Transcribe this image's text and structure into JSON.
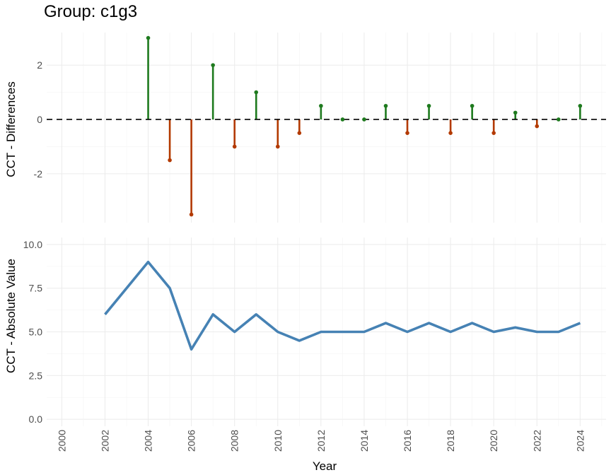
{
  "chart_data": {
    "type": "line",
    "title": "Group: c1g3",
    "xlabel": "Year",
    "x_ticks": [
      "2000",
      "2002",
      "2004",
      "2006",
      "2008",
      "2010",
      "2012",
      "2014",
      "2016",
      "2018",
      "2020",
      "2022",
      "2024"
    ],
    "xlim": [
      1999.3,
      2025.2
    ],
    "colors": {
      "positive": "#1e7a1e",
      "negative": "#b33a00",
      "line": "#4682b4",
      "zero_line": "#000000"
    },
    "panels": [
      {
        "type": "lollipop",
        "ylabel": "CCT - Differences",
        "ylim": [
          -3.8,
          3.2
        ],
        "y_ticks": [
          -2,
          0,
          2
        ],
        "y_tick_labels": [
          "-2",
          "0",
          "2"
        ],
        "zero_line": "dashed",
        "points": [
          {
            "x": 2004,
            "y": 3
          },
          {
            "x": 2005,
            "y": -1.5
          },
          {
            "x": 2006,
            "y": -3.5
          },
          {
            "x": 2007,
            "y": 2
          },
          {
            "x": 2008,
            "y": -1
          },
          {
            "x": 2009,
            "y": 1
          },
          {
            "x": 2010,
            "y": -1
          },
          {
            "x": 2011,
            "y": -0.5
          },
          {
            "x": 2012,
            "y": 0.5
          },
          {
            "x": 2013,
            "y": 0
          },
          {
            "x": 2014,
            "y": 0
          },
          {
            "x": 2015,
            "y": 0.5
          },
          {
            "x": 2016,
            "y": -0.5
          },
          {
            "x": 2017,
            "y": 0.5
          },
          {
            "x": 2018,
            "y": -0.5
          },
          {
            "x": 2019,
            "y": 0.5
          },
          {
            "x": 2020,
            "y": -0.5
          },
          {
            "x": 2021,
            "y": 0.25
          },
          {
            "x": 2022,
            "y": -0.25
          },
          {
            "x": 2023,
            "y": 0
          },
          {
            "x": 2024,
            "y": 0.5
          }
        ]
      },
      {
        "type": "line",
        "ylabel": "CCT - Absolute Value",
        "ylim": [
          -0.4,
          10.4
        ],
        "y_ticks": [
          0,
          2.5,
          5,
          7.5,
          10
        ],
        "y_tick_labels": [
          "0.0",
          "2.5",
          "5.0",
          "7.5",
          "10.0"
        ],
        "points": [
          {
            "x": 2002,
            "y": 6
          },
          {
            "x": 2004,
            "y": 9
          },
          {
            "x": 2005,
            "y": 7.5
          },
          {
            "x": 2006,
            "y": 4
          },
          {
            "x": 2007,
            "y": 6
          },
          {
            "x": 2008,
            "y": 5
          },
          {
            "x": 2009,
            "y": 6
          },
          {
            "x": 2010,
            "y": 5
          },
          {
            "x": 2011,
            "y": 4.5
          },
          {
            "x": 2012,
            "y": 5
          },
          {
            "x": 2013,
            "y": 5
          },
          {
            "x": 2014,
            "y": 5
          },
          {
            "x": 2015,
            "y": 5.5
          },
          {
            "x": 2016,
            "y": 5
          },
          {
            "x": 2017,
            "y": 5.5
          },
          {
            "x": 2018,
            "y": 5
          },
          {
            "x": 2019,
            "y": 5.5
          },
          {
            "x": 2020,
            "y": 5
          },
          {
            "x": 2021,
            "y": 5.25
          },
          {
            "x": 2022,
            "y": 5
          },
          {
            "x": 2023,
            "y": 5
          },
          {
            "x": 2024,
            "y": 5.5
          }
        ]
      }
    ]
  }
}
